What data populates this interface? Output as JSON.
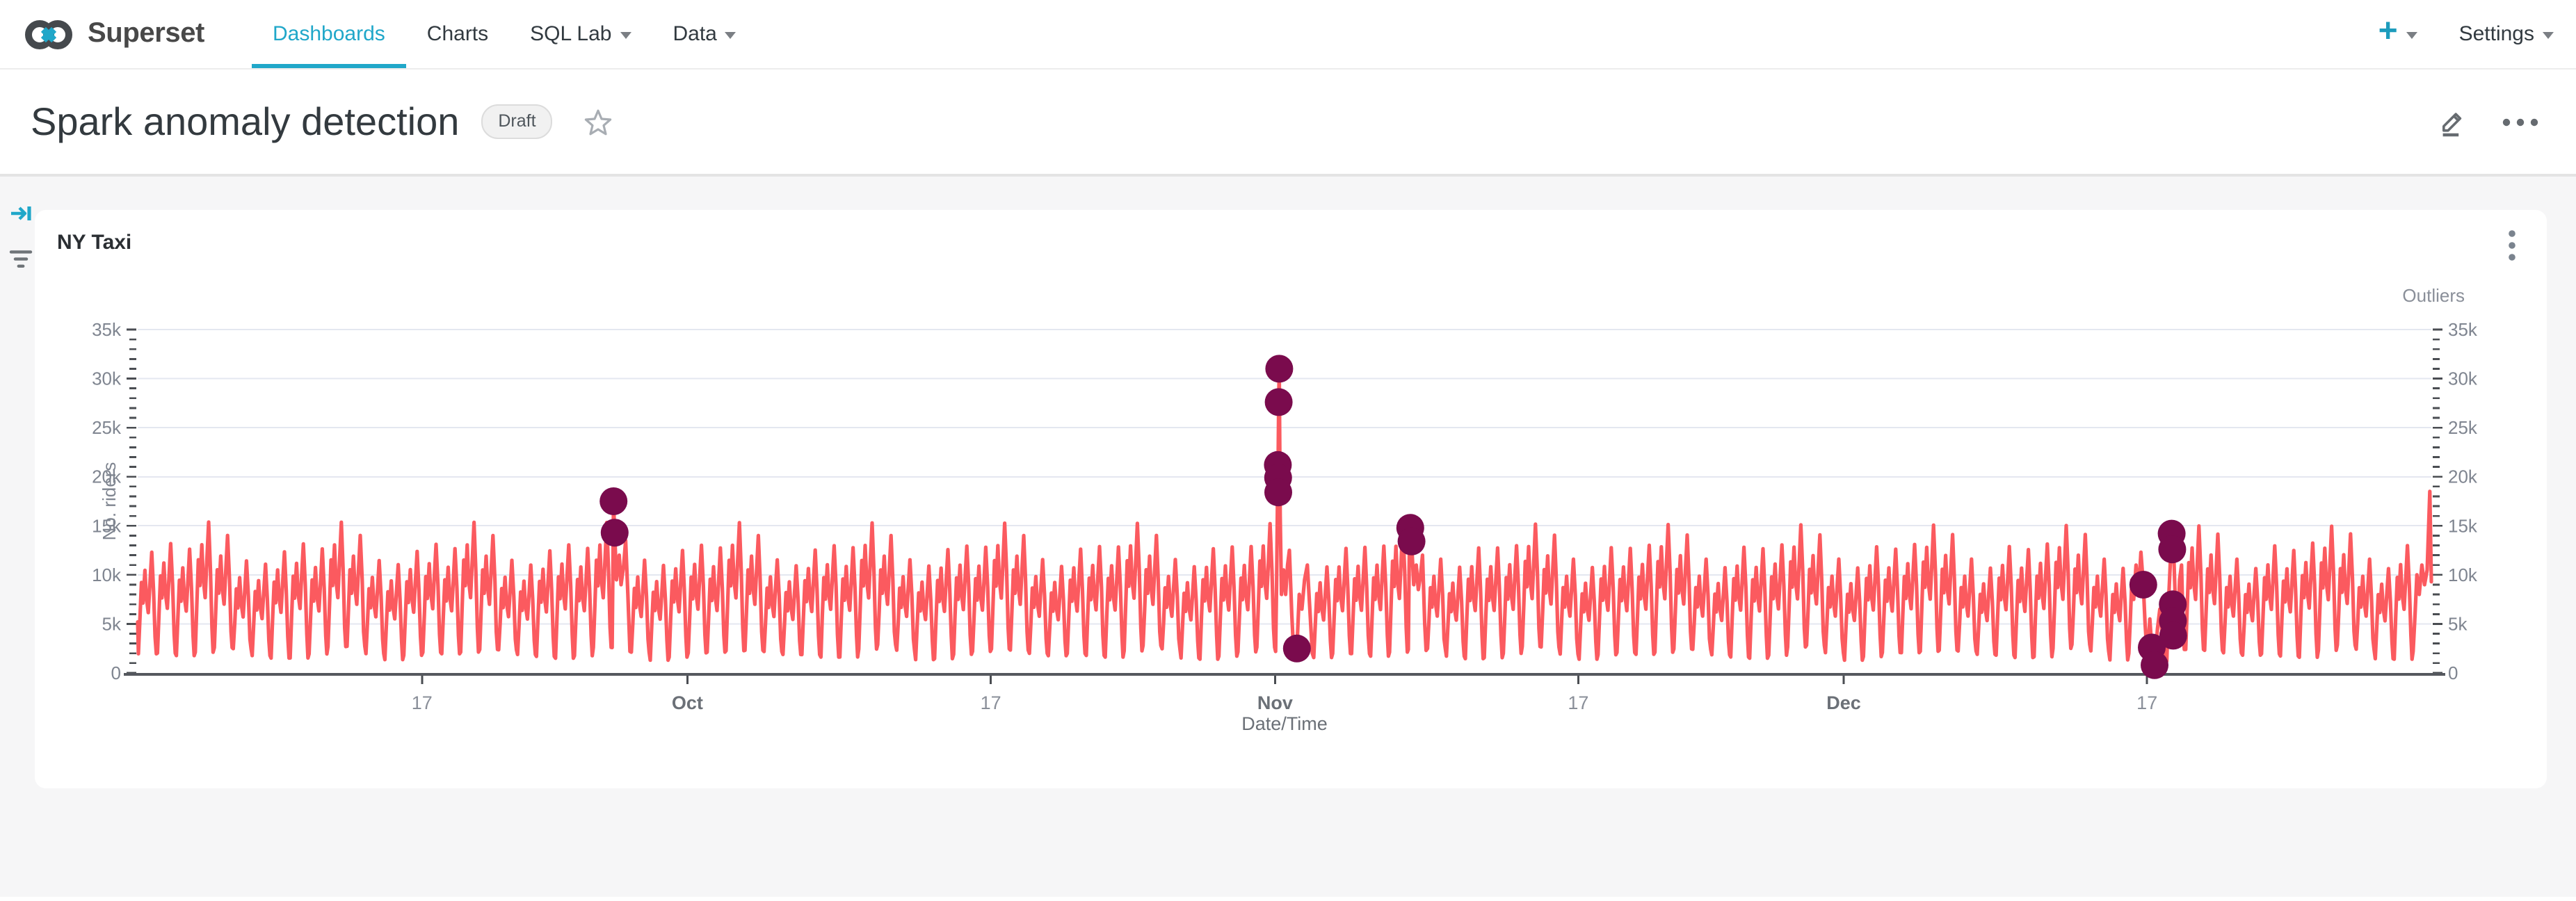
{
  "nav": {
    "brand": "Superset",
    "items": [
      {
        "label": "Dashboards",
        "active": true,
        "caret": false
      },
      {
        "label": "Charts",
        "active": false,
        "caret": false
      },
      {
        "label": "SQL Lab",
        "active": false,
        "caret": true
      },
      {
        "label": "Data",
        "active": false,
        "caret": true
      }
    ],
    "right": {
      "plus_label": "+",
      "settings_label": "Settings"
    }
  },
  "header": {
    "title": "Spark anomaly detection",
    "badge": "Draft"
  },
  "chart_card": {
    "title": "NY Taxi"
  },
  "colors": {
    "accent": "#20a7c9",
    "line": "#fb5a5f",
    "outlier": "#7a0b4d",
    "grid": "#e4e7f0",
    "axis_line": "#55585e",
    "tick": "#4a4d52",
    "tick_label": "#7f8590",
    "month_label": "#6b7077",
    "page_bg": "#f6f6f7"
  },
  "chart_data": {
    "type": "line",
    "title": "NY Taxi",
    "xlabel": "Date/Time",
    "ylabel_left": "No. riders",
    "ylabel_right": "Outliers",
    "x_start_date": "2014-09-02",
    "x_end_date": "2015-01-01",
    "days_total": 121,
    "x_ticks": [
      {
        "day": 15,
        "label": "17",
        "strong": false
      },
      {
        "day": 29,
        "label": "Oct",
        "strong": true
      },
      {
        "day": 45,
        "label": "17",
        "strong": false
      },
      {
        "day": 60,
        "label": "Nov",
        "strong": true
      },
      {
        "day": 76,
        "label": "17",
        "strong": false
      },
      {
        "day": 90,
        "label": "Dec",
        "strong": true
      },
      {
        "day": 106,
        "label": "17",
        "strong": false
      }
    ],
    "ylim_k": [
      0,
      35
    ],
    "y_tick_step_k": 5,
    "y_minor_step_k": 1,
    "y_tick_labels": [
      "0",
      "5k",
      "10k",
      "15k",
      "20k",
      "25k",
      "30k",
      "35k"
    ],
    "grid": true,
    "legend_position": "none",
    "series": [
      {
        "name": "No. riders",
        "kind": "line",
        "color": "#fb5a5f",
        "stroke_width": 2.6,
        "start_value_k": 5.2,
        "start_weekday": "Tue",
        "weekday_order": [
          "Tue",
          "Wed",
          "Thu",
          "Fri",
          "Sat",
          "Sun",
          "Mon"
        ],
        "weekday_peaks_k": {
          "Tue": 12.3,
          "Wed": 12.8,
          "Thu": 13.3,
          "Fri": 14.5,
          "Sat": 14.9,
          "Sun": 10.7,
          "Mon": 11.5
        },
        "weekday_troughs_k": {
          "Tue": 1.7,
          "Wed": 1.8,
          "Thu": 1.9,
          "Fri": 2.4,
          "Sat": 2.6,
          "Sun": 2.2,
          "Mon": 1.6
        },
        "peak_jitter_k": 0.9,
        "trough_jitter_k": 0.3,
        "intraday_template": [
          [
            0.04,
            -1
          ],
          [
            0.12,
            0.45
          ],
          [
            0.2,
            0.75
          ],
          [
            0.28,
            0.58
          ],
          [
            0.38,
            0.85
          ],
          [
            0.46,
            0.62
          ],
          [
            0.56,
            0.5
          ],
          [
            0.64,
            0.72
          ],
          [
            0.74,
            1.0
          ],
          [
            0.84,
            0.68
          ],
          [
            0.92,
            0.3
          ],
          [
            0.98,
            -1
          ]
        ],
        "override_days": {
          "25": [
            [
              0.03,
              2.6
            ],
            [
              0.1,
              17.5
            ],
            [
              0.16,
              14.3
            ],
            [
              0.26,
              9.5
            ],
            [
              0.4,
              12.0
            ],
            [
              0.5,
              9.0
            ],
            [
              0.64,
              11.0
            ],
            [
              0.74,
              13.5
            ],
            [
              0.86,
              8.0
            ],
            [
              0.97,
              2.2
            ]
          ],
          "60": [
            [
              0.03,
              2.2
            ],
            [
              0.08,
              9.0
            ],
            [
              0.13,
              18.4
            ],
            [
              0.16,
              21.2
            ],
            [
              0.19,
              27.6
            ],
            [
              0.22,
              31.0
            ],
            [
              0.27,
              16.0
            ],
            [
              0.34,
              8.0
            ],
            [
              0.45,
              10.5
            ],
            [
              0.56,
              8.0
            ],
            [
              0.66,
              11.0
            ],
            [
              0.76,
              12.5
            ],
            [
              0.88,
              6.0
            ],
            [
              0.97,
              2.6
            ]
          ],
          "61": [
            [
              0.05,
              2.2
            ],
            [
              0.15,
              2.5
            ],
            [
              0.28,
              8.0
            ],
            [
              0.42,
              6.5
            ],
            [
              0.56,
              9.5
            ],
            [
              0.7,
              11.0
            ],
            [
              0.85,
              6.0
            ],
            [
              0.97,
              2.0
            ]
          ],
          "67": [
            [
              0.03,
              2.4
            ],
            [
              0.08,
              12.0
            ],
            [
              0.13,
              14.8
            ],
            [
              0.2,
              13.4
            ],
            [
              0.32,
              9.0
            ],
            [
              0.45,
              11.0
            ],
            [
              0.56,
              8.5
            ],
            [
              0.68,
              10.0
            ],
            [
              0.78,
              12.0
            ],
            [
              0.9,
              5.0
            ],
            [
              0.97,
              2.3
            ]
          ],
          "105": [
            [
              0.04,
              2.0
            ],
            [
              0.12,
              5.5
            ],
            [
              0.2,
              9.5
            ],
            [
              0.3,
              7.5
            ],
            [
              0.42,
              11.0
            ],
            [
              0.55,
              8.0
            ],
            [
              0.68,
              12.3
            ],
            [
              0.8,
              9.0
            ],
            [
              0.9,
              5.0
            ],
            [
              0.97,
              2.8
            ]
          ],
          "106": [
            [
              0.05,
              2.5
            ],
            [
              0.15,
              5.5
            ],
            [
              0.25,
              2.6
            ],
            [
              0.4,
              0.8
            ],
            [
              0.55,
              4.5
            ],
            [
              0.68,
              6.5
            ],
            [
              0.8,
              4.0
            ],
            [
              0.97,
              1.2
            ]
          ],
          "107": [
            [
              0.04,
              1.2
            ],
            [
              0.15,
              8.0
            ],
            [
              0.3,
              14.2
            ],
            [
              0.4,
              12.6
            ],
            [
              0.5,
              7.0
            ],
            [
              0.55,
              5.3
            ],
            [
              0.6,
              3.8
            ],
            [
              0.72,
              9.5
            ],
            [
              0.82,
              11.0
            ],
            [
              0.92,
              4.0
            ],
            [
              0.97,
              2.4
            ]
          ],
          "120": [
            [
              0.04,
              2.2
            ],
            [
              0.14,
              6.0
            ],
            [
              0.24,
              10.0
            ],
            [
              0.36,
              8.0
            ],
            [
              0.5,
              11.0
            ],
            [
              0.64,
              9.0
            ],
            [
              0.78,
              10.5
            ],
            [
              0.92,
              18.5
            ],
            [
              1.0,
              9.3
            ]
          ]
        }
      },
      {
        "name": "Outliers",
        "kind": "scatter",
        "color": "#7a0b4d",
        "marker_radius": 10,
        "points_day_valuek": [
          [
            25.1,
            17.5
          ],
          [
            25.16,
            14.3
          ],
          [
            60.15,
            21.2
          ],
          [
            60.16,
            19.9
          ],
          [
            60.17,
            18.4
          ],
          [
            60.19,
            27.6
          ],
          [
            60.22,
            31.0
          ],
          [
            61.15,
            2.5
          ],
          [
            67.13,
            14.8
          ],
          [
            67.2,
            13.4
          ],
          [
            105.8,
            9.0
          ],
          [
            106.25,
            2.6
          ],
          [
            106.4,
            0.8
          ],
          [
            107.3,
            14.2
          ],
          [
            107.33,
            12.6
          ],
          [
            107.36,
            7.0
          ],
          [
            107.37,
            5.3
          ],
          [
            107.38,
            3.8
          ]
        ]
      }
    ]
  }
}
